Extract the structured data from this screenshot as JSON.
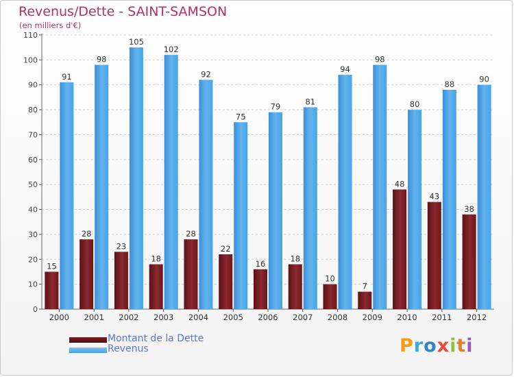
{
  "header": {
    "title": "Revenus/Dette - SAINT-SAMSON",
    "subtitle": "(en milliers d'€)"
  },
  "legend": {
    "items": [
      {
        "label": "Montant de la Dette",
        "color": "#7a1f24"
      },
      {
        "label": "Revenus",
        "color": "#4aa3e6"
      }
    ]
  },
  "logo": {
    "letters": [
      "P",
      "r",
      "o",
      "x",
      "i",
      "t",
      "i"
    ],
    "colors": [
      "#f39c12",
      "#3fa9d9",
      "#2e86c1",
      "#e74c3c",
      "#8bc34a",
      "#e67e22",
      "#9b59b6"
    ]
  },
  "chart_data": {
    "type": "bar",
    "categories": [
      "2000",
      "2001",
      "2002",
      "2003",
      "2004",
      "2005",
      "2006",
      "2007",
      "2008",
      "2009",
      "2010",
      "2011",
      "2012"
    ],
    "series": [
      {
        "name": "Montant de la Dette",
        "values": [
          15,
          28,
          23,
          18,
          28,
          22,
          16,
          18,
          10,
          7,
          48,
          43,
          38
        ],
        "color": "#7a1f24"
      },
      {
        "name": "Revenus",
        "values": [
          91,
          98,
          105,
          102,
          92,
          75,
          79,
          81,
          94,
          98,
          80,
          88,
          90
        ],
        "color": "#4aa3e6"
      }
    ],
    "yticks": [
      0,
      10,
      20,
      30,
      40,
      50,
      60,
      70,
      80,
      90,
      100,
      110
    ],
    "ylim": [
      0,
      110
    ],
    "grid": true,
    "legend_position": "bottom-left"
  }
}
